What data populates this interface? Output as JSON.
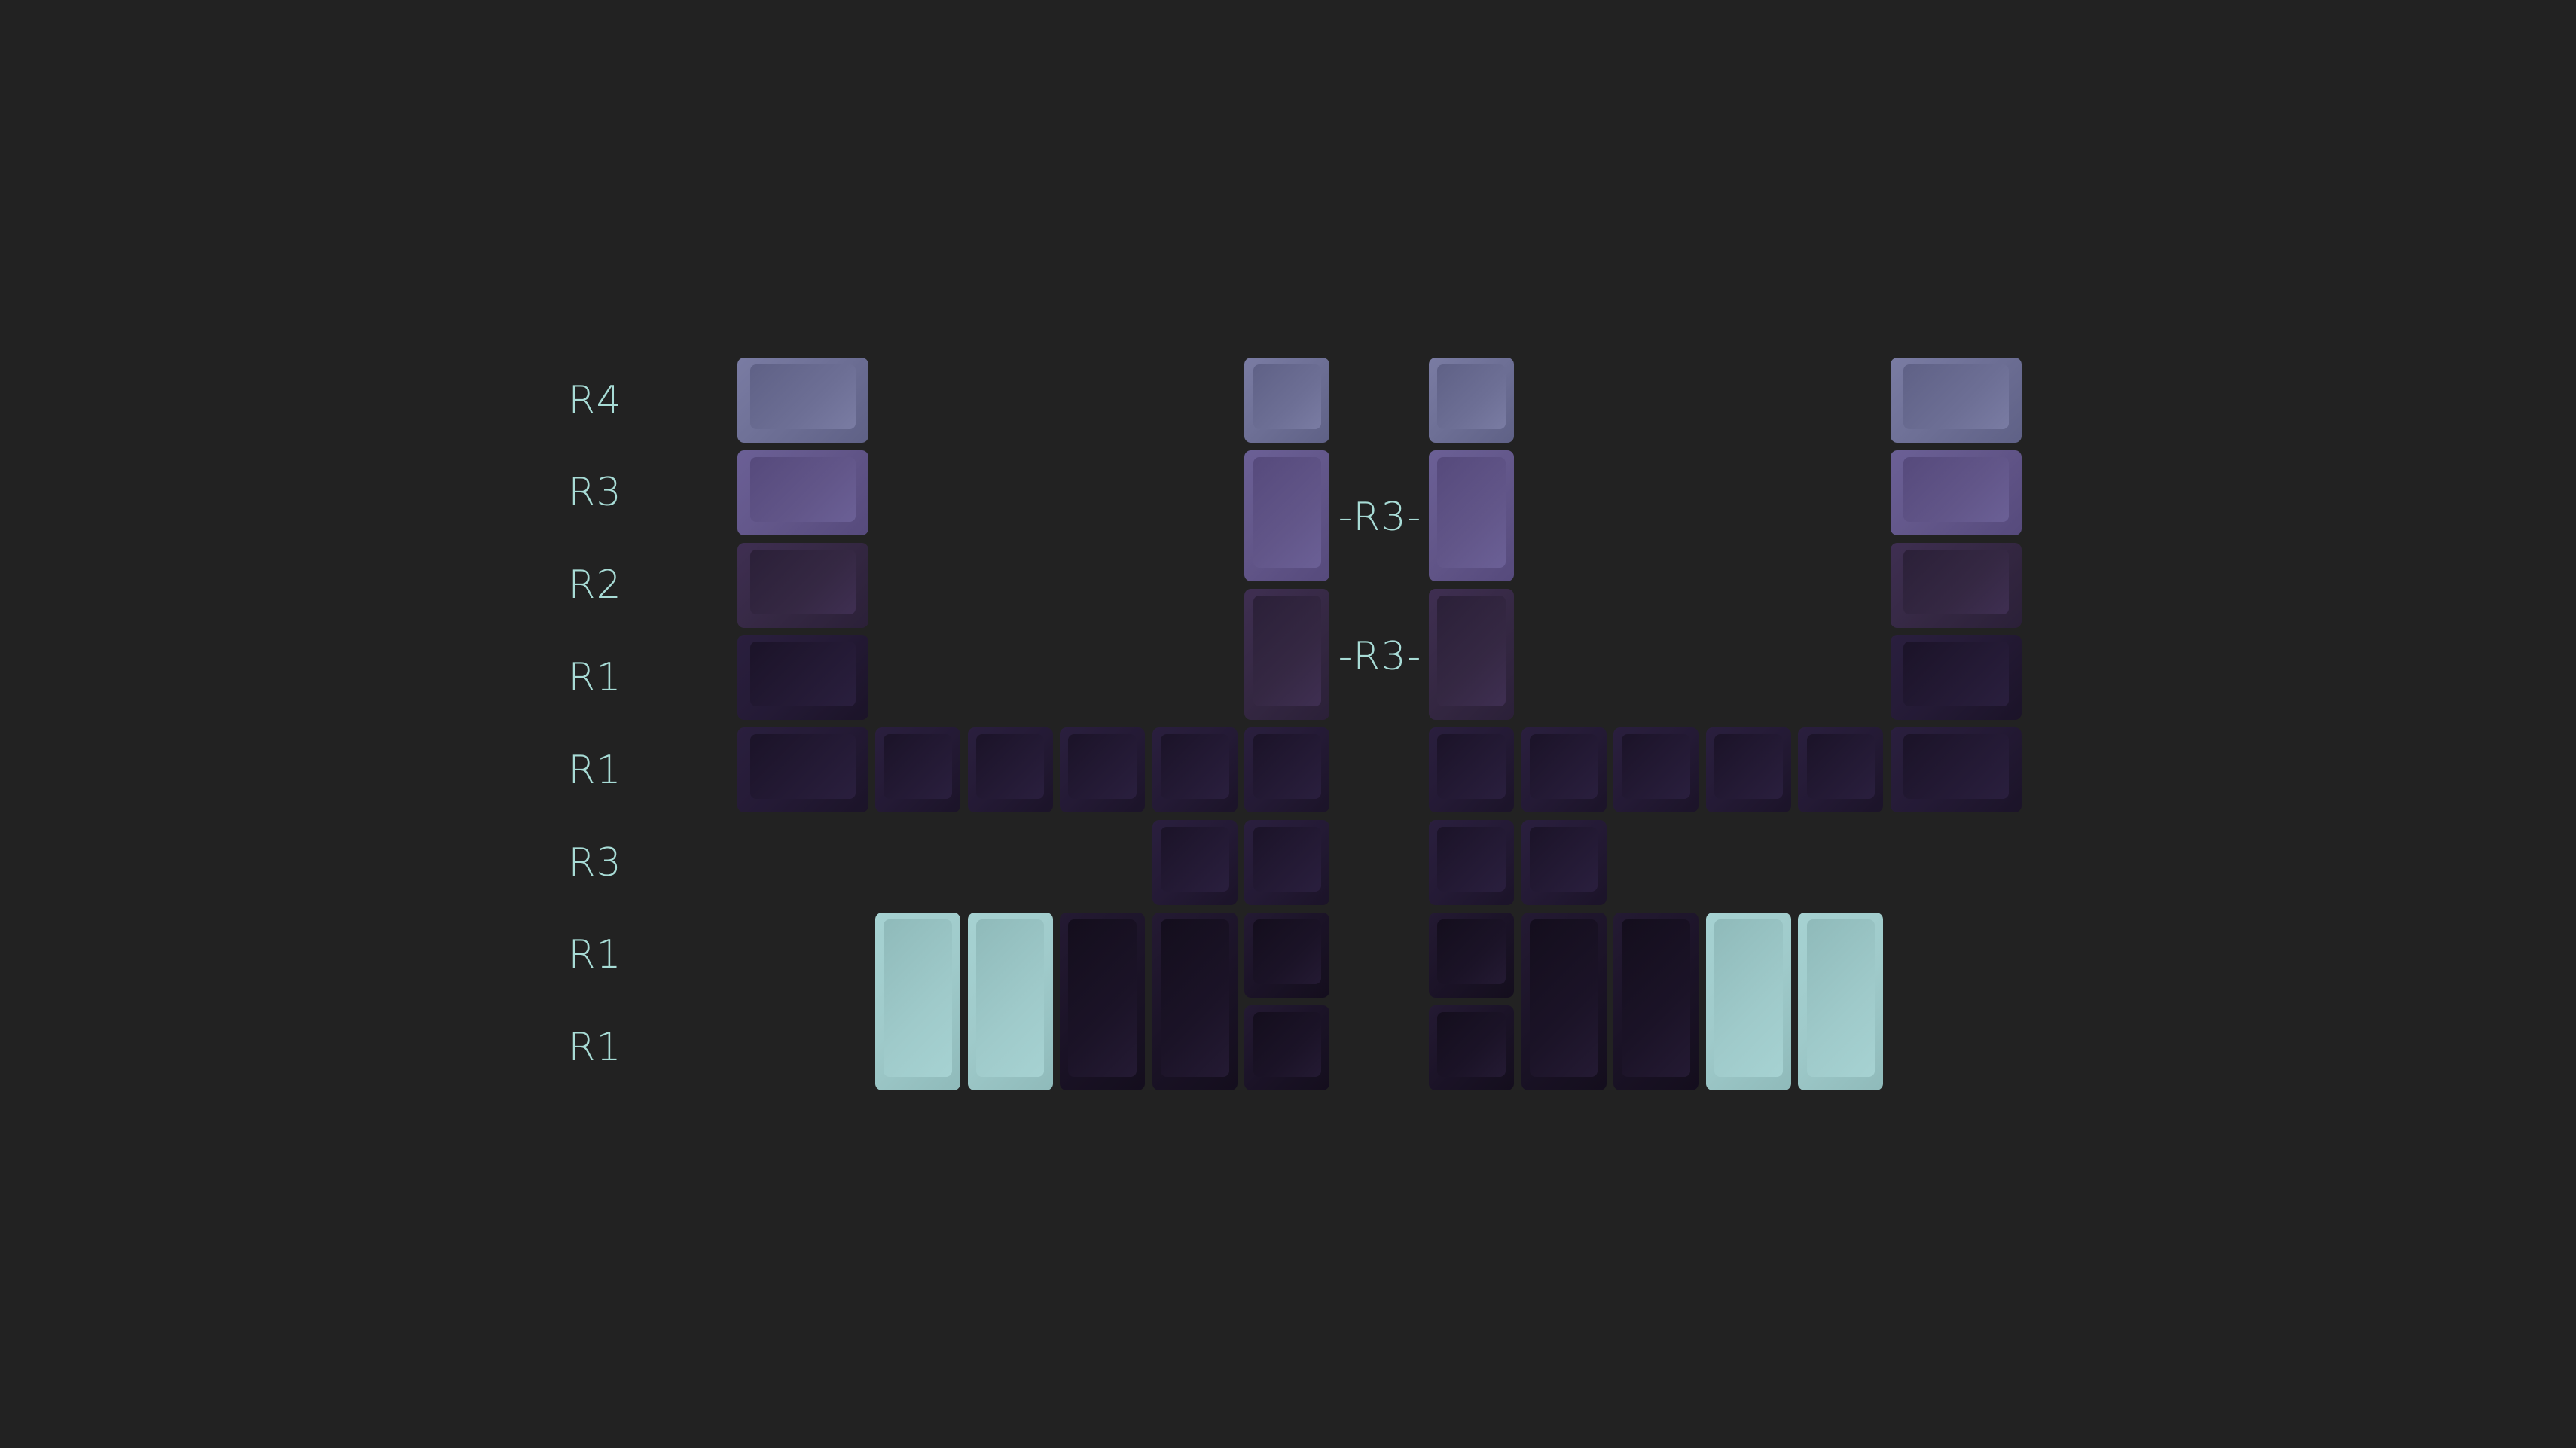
{
  "row_labels": [
    "R4",
    "R3",
    "R2",
    "R1",
    "R1",
    "R3",
    "R1",
    "R1"
  ],
  "center_labels": [
    "-R3-",
    "-R3-"
  ],
  "colors": {
    "background": "#222222",
    "label_text": "#a8dcd6",
    "lavender": "#6d6f95",
    "purple": "#625689",
    "plum": "#352843",
    "dark_purple": "#241a35",
    "darkest": "#1b1327",
    "mint": "#9fcaca"
  }
}
